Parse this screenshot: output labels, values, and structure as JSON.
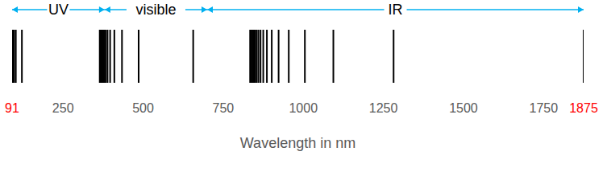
{
  "chart_data": {
    "type": "spectrum",
    "x": [
      91.2,
      92.3,
      93.0,
      93.8,
      95.0,
      97.3,
      102.6,
      121.6,
      364.6,
      365.4,
      366.2,
      367.4,
      368.8,
      370.4,
      373.4,
      375.0,
      377.1,
      379.8,
      383.5,
      388.9,
      397.0,
      410.2,
      434.0,
      486.1,
      656.3,
      834.0,
      838.0,
      841.3,
      843.8,
      846.7,
      850.2,
      854.5,
      859.8,
      866.5,
      875.0,
      886.3,
      901.5,
      922.9,
      954.6,
      1004.9,
      1093.8,
      1281.8,
      1875.0
    ],
    "color": "#000000",
    "xlabel": "Wavelength in nm",
    "xlim": [
      91,
      1875
    ],
    "xticks": [
      91,
      250,
      500,
      750,
      1000,
      1250,
      1500,
      1750,
      1875
    ],
    "tick_labels": "x",
    "annotations": [
      {
        "text": "UV",
        "range": [
          91,
          380
        ]
      },
      {
        "text": "visible",
        "range": [
          380,
          700
        ]
      },
      {
        "text": "IR",
        "range": [
          700,
          1875
        ]
      }
    ]
  }
}
